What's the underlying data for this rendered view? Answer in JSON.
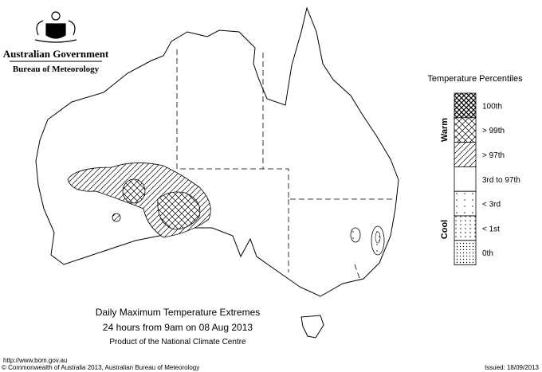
{
  "header": {
    "government": "Australian Government",
    "agency": "Bureau of Meteorology"
  },
  "legend": {
    "title": "Temperature Percentiles",
    "warm": "Warm",
    "cool": "Cool",
    "items": [
      "100th",
      "> 99th",
      "> 97th",
      "3rd to 97th",
      "< 3rd",
      "< 1st",
      "0th"
    ]
  },
  "caption": {
    "title": "Daily Maximum Temperature Extremes",
    "period": "24 hours from 9am on 08 Aug 2013",
    "product": "Product of the National Climate Centre"
  },
  "footer": {
    "url": "http://www.bom.gov.au",
    "copyright": "© Commonwealth of Australia 2013, Australian Bureau of Meteorology",
    "issued": "Issued: 18/09/2013"
  }
}
